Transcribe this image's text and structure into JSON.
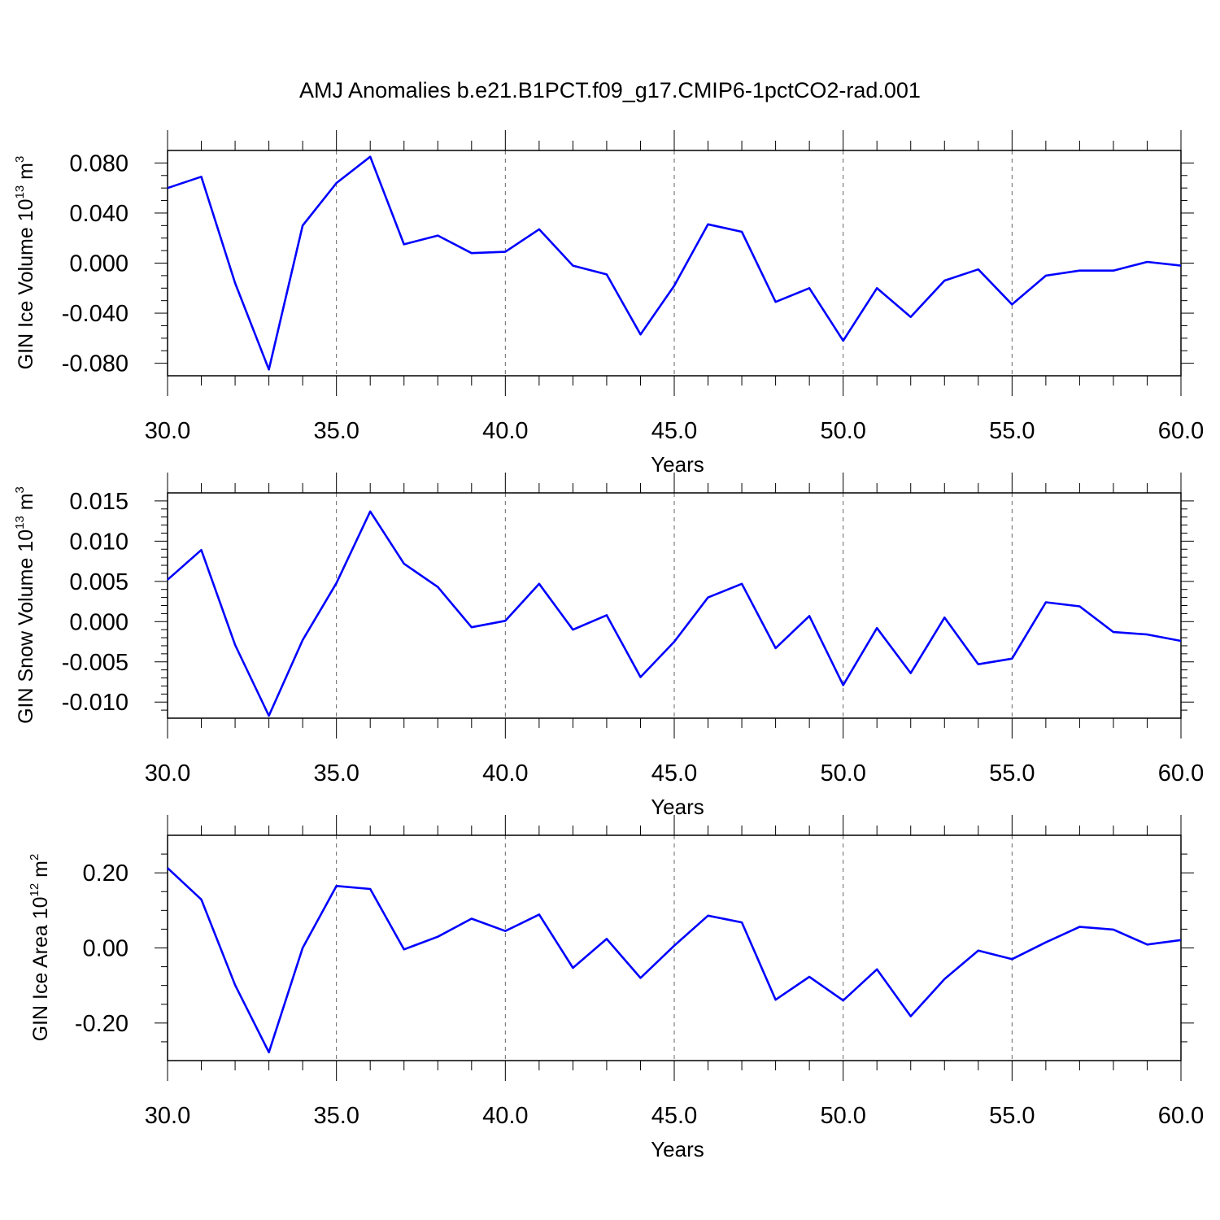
{
  "title": "AMJ Anomalies b.e21.B1PCT.f09_g17.CMIP6-1pctCO2-rad.001",
  "chart_data": [
    {
      "type": "line",
      "ylabel": {
        "text": "GIN Ice Volume 10",
        "exp": "13",
        "unit": " m",
        "unit_exp": "3"
      },
      "xlabel": "Years",
      "xlim": [
        30,
        60
      ],
      "ylim": [
        -0.09,
        0.09
      ],
      "xticks": [
        30,
        35,
        40,
        45,
        50,
        55,
        60
      ],
      "xtick_labels": [
        "30.0",
        "35.0",
        "40.0",
        "45.0",
        "50.0",
        "55.0",
        "60.0"
      ],
      "yticks": [
        0.08,
        0.04,
        0.0,
        -0.04,
        -0.08
      ],
      "ytick_labels": [
        "0.080",
        "0.040",
        "0.000",
        "-0.040",
        "-0.080"
      ],
      "y_minor_step": 0.01,
      "grid": "vertical dashed",
      "color": "#0000ff",
      "x": [
        30,
        31,
        32,
        33,
        34,
        35,
        36,
        37,
        38,
        39,
        40,
        41,
        42,
        43,
        44,
        45,
        46,
        47,
        48,
        49,
        50,
        51,
        52,
        53,
        54,
        55,
        56,
        57,
        58,
        59,
        60
      ],
      "values": [
        0.06,
        0.069,
        -0.016,
        -0.085,
        0.03,
        0.064,
        0.085,
        0.015,
        0.022,
        0.008,
        0.009,
        0.027,
        -0.002,
        -0.009,
        -0.057,
        -0.018,
        0.031,
        0.025,
        -0.031,
        -0.02,
        -0.062,
        -0.02,
        -0.043,
        -0.014,
        -0.005,
        -0.033,
        -0.01,
        -0.006,
        -0.006,
        0.001,
        -0.002
      ]
    },
    {
      "type": "line",
      "ylabel": {
        "text": "GIN Snow Volume 10",
        "exp": "13",
        "unit": " m",
        "unit_exp": "3"
      },
      "xlabel": "Years",
      "xlim": [
        30,
        60
      ],
      "ylim": [
        -0.012,
        0.016
      ],
      "xticks": [
        30,
        35,
        40,
        45,
        50,
        55,
        60
      ],
      "xtick_labels": [
        "30.0",
        "35.0",
        "40.0",
        "45.0",
        "50.0",
        "55.0",
        "60.0"
      ],
      "yticks": [
        0.015,
        0.01,
        0.005,
        0.0,
        -0.005,
        -0.01
      ],
      "ytick_labels": [
        "0.015",
        "0.010",
        "0.005",
        "0.000",
        "-0.005",
        "-0.010"
      ],
      "y_minor_step": 0.001,
      "grid": "vertical dashed",
      "color": "#0000ff",
      "x": [
        30,
        31,
        32,
        33,
        34,
        35,
        36,
        37,
        38,
        39,
        40,
        41,
        42,
        43,
        44,
        45,
        46,
        47,
        48,
        49,
        50,
        51,
        52,
        53,
        54,
        55,
        56,
        57,
        58,
        59,
        60
      ],
      "values": [
        0.0052,
        0.0089,
        -0.0029,
        -0.0117,
        -0.0023,
        0.0048,
        0.0137,
        0.0072,
        0.0043,
        -0.0007,
        0.0001,
        0.0047,
        -0.001,
        0.0008,
        -0.0069,
        -0.0025,
        0.003,
        0.0047,
        -0.0033,
        0.0007,
        -0.0079,
        -0.0008,
        -0.0064,
        0.0005,
        -0.0053,
        -0.0046,
        0.0024,
        0.0019,
        -0.0013,
        -0.0016,
        -0.0024
      ]
    },
    {
      "type": "line",
      "ylabel": {
        "text": "GIN Ice Area 10",
        "exp": "12",
        "unit": " m",
        "unit_exp": "2"
      },
      "xlabel": "Years",
      "xlim": [
        30,
        60
      ],
      "ylim": [
        -0.3,
        0.3
      ],
      "xticks": [
        30,
        35,
        40,
        45,
        50,
        55,
        60
      ],
      "xtick_labels": [
        "30.0",
        "35.0",
        "40.0",
        "45.0",
        "50.0",
        "55.0",
        "60.0"
      ],
      "yticks": [
        0.2,
        0.0,
        -0.2
      ],
      "ytick_labels": [
        "0.20",
        "0.00",
        "-0.20"
      ],
      "y_minor_step": 0.05,
      "grid": "vertical dashed",
      "color": "#0000ff",
      "x": [
        30,
        31,
        32,
        33,
        34,
        35,
        36,
        37,
        38,
        39,
        40,
        41,
        42,
        43,
        44,
        45,
        46,
        47,
        48,
        49,
        50,
        51,
        52,
        53,
        54,
        55,
        56,
        57,
        58,
        59,
        60
      ],
      "values": [
        0.213,
        0.129,
        -0.099,
        -0.278,
        0.0,
        0.165,
        0.157,
        -0.004,
        0.03,
        0.078,
        0.045,
        0.089,
        -0.053,
        0.024,
        -0.08,
        0.006,
        0.086,
        0.068,
        -0.138,
        -0.077,
        -0.14,
        -0.057,
        -0.182,
        -0.083,
        -0.007,
        -0.03,
        0.015,
        0.056,
        0.049,
        0.009,
        0.021
      ]
    }
  ]
}
